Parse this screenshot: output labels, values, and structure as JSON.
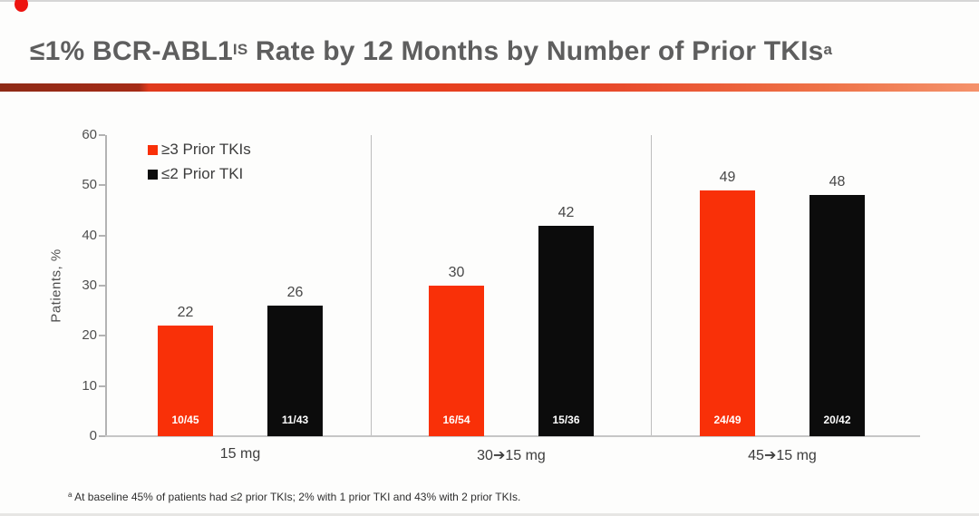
{
  "slide": {
    "title_prefix": "≤1% BCR-ABL1",
    "title_sup_is": "IS",
    "title_rest": " Rate by 12 Months by Number of Prior TKIs",
    "title_sup_a": "a",
    "footnote_sup": "a",
    "footnote_text": " At baseline 45% of patients had ≤2 prior TKIs; 2% with 1 prior TKI and 43% with 2 prior TKIs.",
    "accent": {
      "dot_color": "#ed1410",
      "rule_dark": "#a52b16",
      "rule_bright": "#e63f1e",
      "rule_light": "#f4926b"
    }
  },
  "chart_data": {
    "type": "bar",
    "title": "≤1% BCR-ABL1 IS Rate by 12 Months by Number of Prior TKIs",
    "xlabel": "",
    "ylabel": "Patients, %",
    "ylim": [
      0,
      60
    ],
    "ytick_step": 10,
    "grid": false,
    "legend_position": "top-left",
    "categories": [
      "15 mg",
      "30➔15 mg",
      "45➔15 mg"
    ],
    "series": [
      {
        "name": "≥3 Prior TKIs",
        "color": "#f93008",
        "values": [
          22,
          30,
          49
        ],
        "bar_fractions": [
          "10/45",
          "16/54",
          "24/49"
        ]
      },
      {
        "name": "≤2 Prior TKI",
        "color": "#0c0c0c",
        "values": [
          26,
          42,
          48
        ],
        "bar_fractions": [
          "11/43",
          "15/36",
          "20/42"
        ]
      }
    ]
  }
}
